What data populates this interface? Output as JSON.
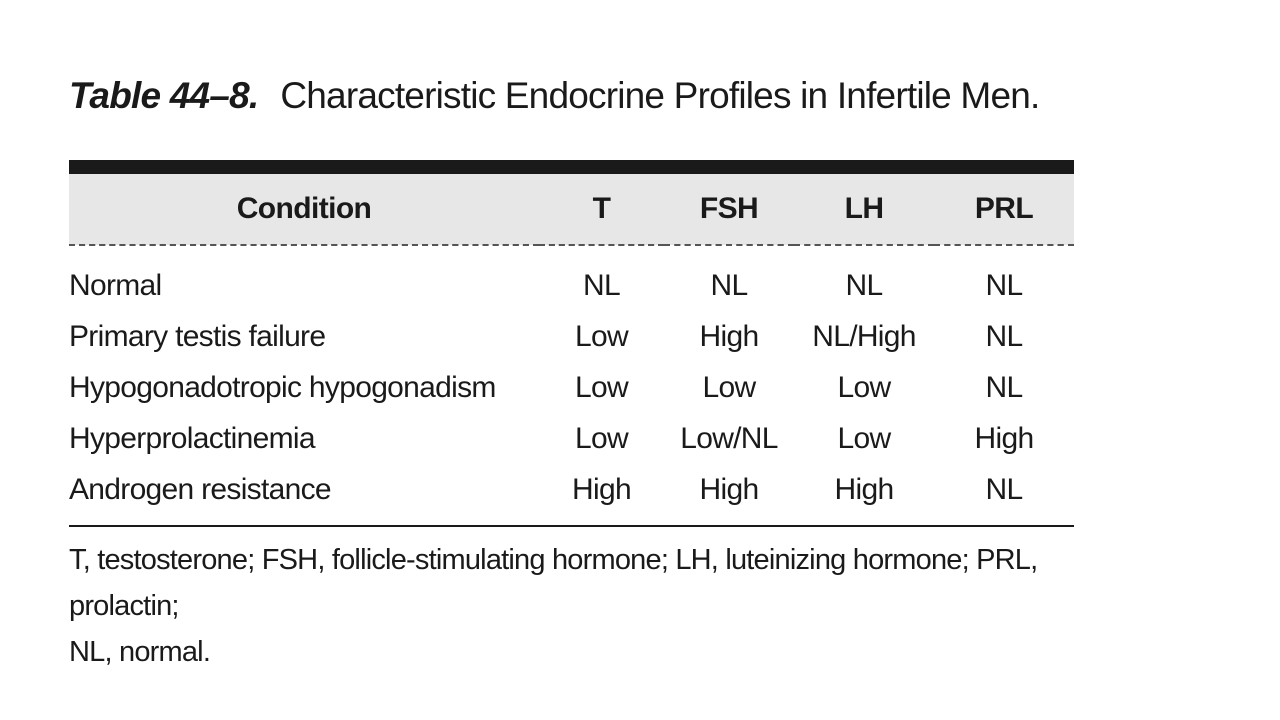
{
  "caption": {
    "number": "Table 44–8.",
    "title": "Characteristic Endocrine Profiles in Infertile Men."
  },
  "table": {
    "headers": [
      "Condition",
      "T",
      "FSH",
      "LH",
      "PRL"
    ],
    "rows": [
      [
        "Normal",
        "NL",
        "NL",
        "NL",
        "NL"
      ],
      [
        "Primary testis failure",
        "Low",
        "High",
        "NL/High",
        "NL"
      ],
      [
        "Hypogonadotropic hypogonadism",
        "Low",
        "Low",
        "Low",
        "NL"
      ],
      [
        "Hyperprolactinemia",
        "Low",
        "Low/NL",
        "Low",
        "High"
      ],
      [
        "Androgen resistance",
        "High",
        "High",
        "High",
        "NL"
      ]
    ]
  },
  "footnote": {
    "line1": "T, testosterone; FSH, follicle-stimulating hormone; LH, luteinizing hormone; PRL, prolactin;",
    "line2": "NL, normal."
  }
}
